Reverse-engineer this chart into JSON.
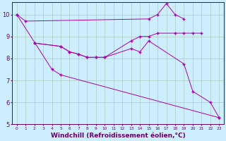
{
  "background_color": "#cceeff",
  "grid_color": "#aaccbb",
  "line_color": "#aa00aa",
  "xlim_min": -0.5,
  "xlim_max": 23.5,
  "ylim_min": 5.0,
  "ylim_max": 10.55,
  "xlabel": "Windchill (Refroidissement éolien,°C)",
  "xlabel_fontsize": 6.5,
  "xtick_fontsize": 4.2,
  "ytick_fontsize": 6,
  "ytick_values": [
    5,
    6,
    7,
    8,
    9,
    10
  ],
  "curve1_x": [
    0,
    1,
    15,
    16,
    17,
    18,
    19
  ],
  "curve1_y": [
    10.0,
    9.7,
    9.8,
    10.0,
    10.5,
    10.0,
    9.8
  ],
  "curve2_x": [
    2,
    5,
    6,
    7,
    8,
    9,
    10,
    13,
    14,
    15,
    16,
    18,
    19,
    20,
    21
  ],
  "curve2_y": [
    8.7,
    8.55,
    8.3,
    8.2,
    8.05,
    8.05,
    8.05,
    8.8,
    9.0,
    9.0,
    9.15,
    9.15,
    9.15,
    9.15,
    9.15
  ],
  "curve3_x": [
    2,
    5,
    6,
    7,
    8,
    9,
    10,
    13,
    14,
    15,
    19,
    20,
    22,
    23
  ],
  "curve3_y": [
    8.7,
    8.55,
    8.3,
    8.2,
    8.05,
    8.05,
    8.05,
    8.45,
    8.3,
    8.8,
    7.75,
    6.5,
    6.0,
    5.3
  ],
  "curve4_x": [
    0,
    4,
    5,
    23
  ],
  "curve4_y": [
    10.0,
    7.5,
    7.25,
    5.3
  ],
  "tick_color": "#660066",
  "spine_color": "#660066"
}
